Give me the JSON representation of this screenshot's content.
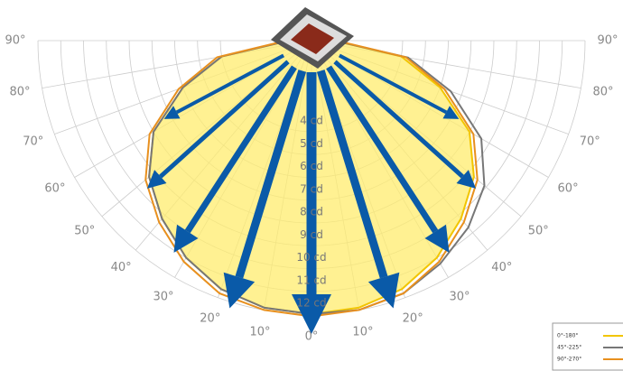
{
  "chart_data": {
    "type": "polar",
    "angle_ticks": [
      {
        "value": -90,
        "label": "90°"
      },
      {
        "value": -80,
        "label": "80°"
      },
      {
        "value": -70,
        "label": "70°"
      },
      {
        "value": -60,
        "label": "60°"
      },
      {
        "value": -50,
        "label": "50°"
      },
      {
        "value": -40,
        "label": "40°"
      },
      {
        "value": -30,
        "label": "30°"
      },
      {
        "value": -20,
        "label": "20°"
      },
      {
        "value": -10,
        "label": "10°"
      },
      {
        "value": 0,
        "label": "0°"
      },
      {
        "value": 10,
        "label": "10°"
      },
      {
        "value": 20,
        "label": "20°"
      },
      {
        "value": 30,
        "label": "30°"
      },
      {
        "value": 40,
        "label": "40°"
      },
      {
        "value": 50,
        "label": "50°"
      },
      {
        "value": 60,
        "label": "60°"
      },
      {
        "value": 70,
        "label": "70°"
      },
      {
        "value": 80,
        "label": "80°"
      },
      {
        "value": 90,
        "label": "90°"
      }
    ],
    "rlim": [
      0,
      12
    ],
    "rticks": [
      {
        "value": 4,
        "label": "4 cd"
      },
      {
        "value": 5,
        "label": "5 cd"
      },
      {
        "value": 6,
        "label": "6 cd"
      },
      {
        "value": 7,
        "label": "7 cd"
      },
      {
        "value": 8,
        "label": "8 cd"
      },
      {
        "value": 9,
        "label": "9 cd"
      },
      {
        "value": 10,
        "label": "10 cd"
      },
      {
        "value": 11,
        "label": "11 cd"
      },
      {
        "value": 12,
        "label": "12 cd"
      }
    ],
    "x": [
      -90,
      -80,
      -70,
      -60,
      -50,
      -40,
      -30,
      -20,
      -10,
      0,
      10,
      20,
      30,
      40,
      50,
      60,
      70,
      80,
      90
    ],
    "series": [
      {
        "name": "0°-180°",
        "color": "#f2c500",
        "values": [
          1,
          4,
          6,
          8,
          9.3,
          10.2,
          11,
          11.6,
          11.9,
          12,
          11.9,
          11.6,
          11,
          10.2,
          9.3,
          8,
          6,
          4,
          1
        ]
      },
      {
        "name": "45°-225°",
        "color": "#777777",
        "values": [
          1,
          4,
          6,
          8,
          9.3,
          10.2,
          11,
          11.6,
          11.9,
          12,
          12,
          11.8,
          11.3,
          10.7,
          9.9,
          8.6,
          6.5,
          4.3,
          1
        ]
      },
      {
        "name": "90°-270°",
        "color": "#e8901e",
        "values": [
          1.1,
          4.2,
          6.2,
          8.2,
          9.5,
          10.4,
          11.2,
          11.8,
          12,
          12.1,
          12,
          11.8,
          11.2,
          10.4,
          9.5,
          8.2,
          6.2,
          4.2,
          1.1
        ]
      }
    ]
  }
}
